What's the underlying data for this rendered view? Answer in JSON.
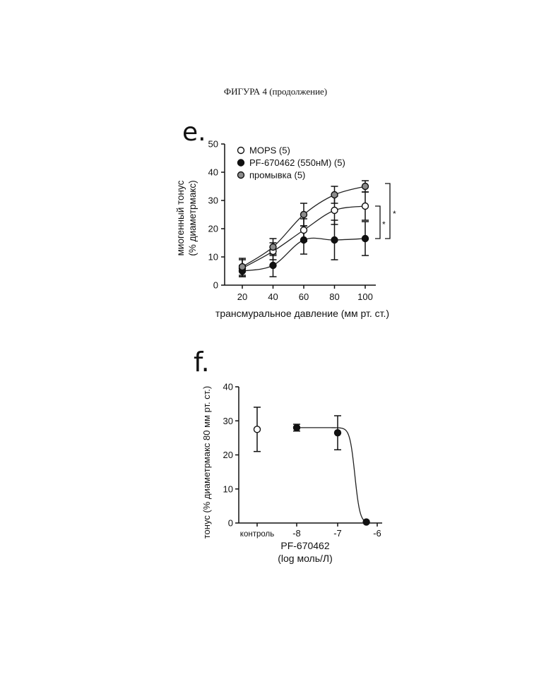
{
  "page": {
    "heading": "ФИГУРА 4 (продолжение)"
  },
  "panel_e": {
    "letter": "e."
  },
  "panel_f": {
    "letter": "f."
  },
  "chart_data": [
    {
      "type": "line",
      "panel": "e.",
      "xlabel": "трансмуральное давление (мм рт. ст.)",
      "ylabel": [
        "миогенный тонус",
        "(% диаметрмакс)"
      ],
      "xlim": [
        15,
        105
      ],
      "ylim": [
        0,
        50
      ],
      "x_ticks": [
        20,
        40,
        60,
        80,
        100
      ],
      "y_ticks": [
        0,
        10,
        20,
        30,
        40,
        50
      ],
      "legend_position": "top-left",
      "grid": false,
      "x": [
        20,
        40,
        60,
        80,
        100
      ],
      "series": [
        {
          "name": "MOPS (5)",
          "marker": "open",
          "color": "#ffffff",
          "values": [
            6,
            12,
            19.5,
            26.5,
            28
          ],
          "errors": [
            3,
            3,
            4,
            5,
            5
          ]
        },
        {
          "name": "PF-670462 (550нМ) (5)",
          "marker": "filled",
          "color": "#111111",
          "values": [
            5,
            7,
            16,
            16,
            16.5
          ],
          "errors": [
            2,
            4,
            5,
            7,
            6
          ]
        },
        {
          "name": "промывка (5)",
          "marker": "grey",
          "color": "#8c8c8c",
          "values": [
            6.5,
            13.5,
            25,
            32,
            35
          ],
          "errors": [
            3,
            3,
            4,
            3,
            2
          ]
        }
      ],
      "significance_labels": [
        "*",
        "*"
      ]
    },
    {
      "type": "line",
      "panel": "f.",
      "xlabel": [
        "PF-670462",
        "(log моль/Л)"
      ],
      "ylabel": "тонус (% диаметрмакс 80 мм рт. ст.)",
      "ylim": [
        0,
        40
      ],
      "y_ticks": [
        0,
        10,
        20,
        30,
        40
      ],
      "x_tick_labels": [
        "контроль",
        "-8",
        "-7",
        "-6"
      ],
      "grid": false,
      "points": [
        {
          "x": "контроль",
          "y": 27.5,
          "error": 6.5,
          "marker": "open"
        },
        {
          "x": -8,
          "y": 28,
          "error": 1,
          "marker": "filled"
        },
        {
          "x": -7,
          "y": 26.5,
          "error": 5,
          "marker": "filled"
        },
        {
          "x": -6.3,
          "y": 0.3,
          "error": 0,
          "marker": "filled"
        }
      ]
    }
  ]
}
